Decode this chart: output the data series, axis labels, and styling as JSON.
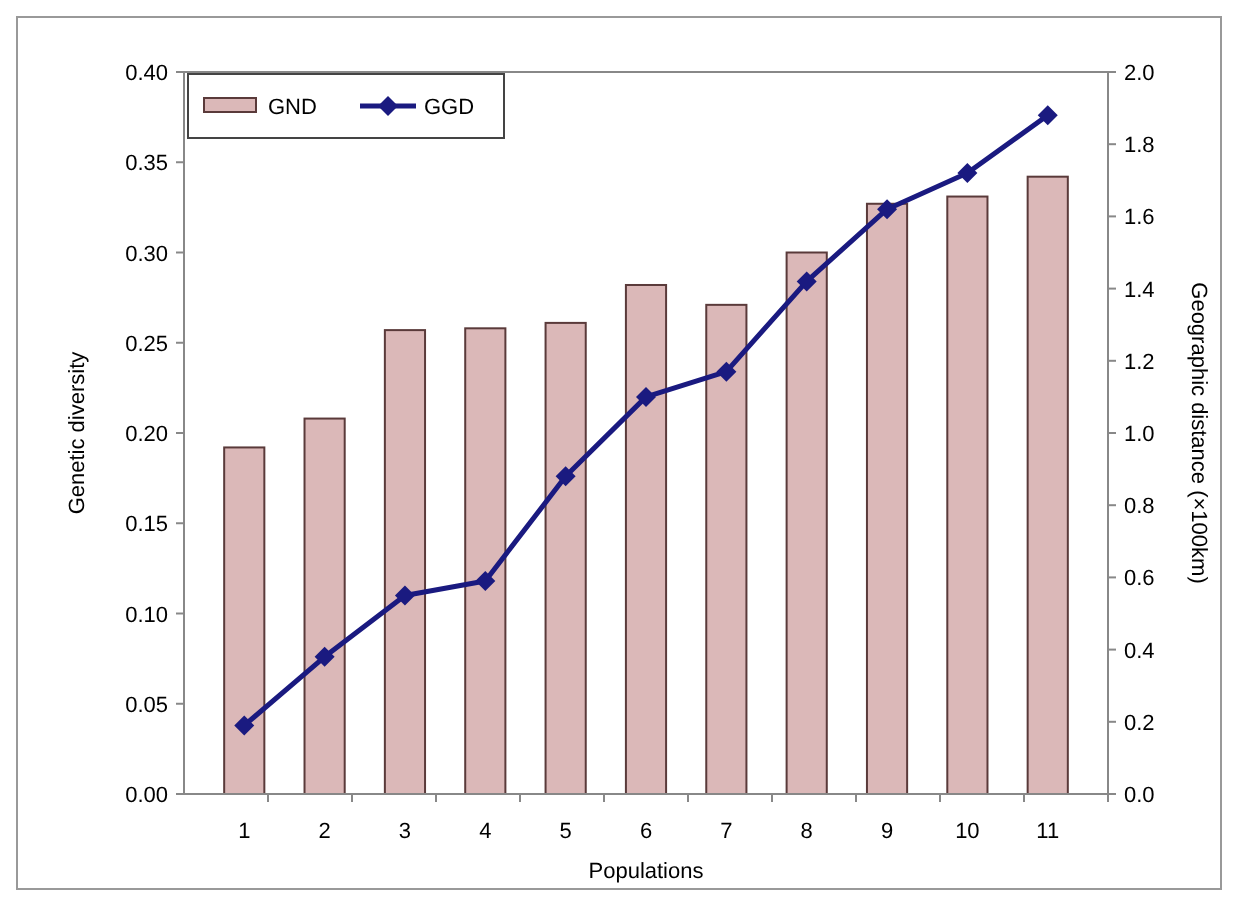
{
  "chart_data": {
    "type": "bar",
    "xlabel": "Populations",
    "ylabel": "Genetic diversity",
    "y2label": "Geographic distance (×100km)",
    "categories": [
      "1",
      "2",
      "3",
      "4",
      "5",
      "6",
      "7",
      "8",
      "9",
      "10",
      "11"
    ],
    "series": [
      {
        "name": "GND",
        "color": "#dbb8b8",
        "values": [
          0.192,
          0.208,
          0.257,
          0.258,
          0.261,
          0.282,
          0.271,
          0.3,
          0.327,
          0.331,
          0.342
        ]
      },
      {
        "name": "GGD",
        "type": "line",
        "axis": "y2",
        "color": "#1a1a80",
        "marker": "diamond",
        "values": [
          0.19,
          0.38,
          0.55,
          0.59,
          0.88,
          1.1,
          1.17,
          1.42,
          1.62,
          1.72,
          1.88
        ]
      }
    ],
    "ylim": [
      0,
      0.4
    ],
    "yticks": [
      {
        "value": 0,
        "label": "0.00"
      },
      {
        "value": 0.05,
        "label": "0.05"
      },
      {
        "value": 0.1,
        "label": "0.10"
      },
      {
        "value": 0.15,
        "label": "0.15"
      },
      {
        "value": 0.2,
        "label": "0.20"
      },
      {
        "value": 0.25,
        "label": "0.25"
      },
      {
        "value": 0.3,
        "label": "0.30"
      },
      {
        "value": 0.35,
        "label": "0.35"
      },
      {
        "value": 0.4,
        "label": "0.40"
      }
    ],
    "y2lim": [
      0,
      2
    ],
    "y2ticks": [
      {
        "value": 0,
        "label": "0.0"
      },
      {
        "value": 0.2,
        "label": "0.2"
      },
      {
        "value": 0.4,
        "label": "0.4"
      },
      {
        "value": 0.6,
        "label": "0.6"
      },
      {
        "value": 0.8,
        "label": "0.8"
      },
      {
        "value": 1,
        "label": "1.0"
      },
      {
        "value": 1.2,
        "label": "1.2"
      },
      {
        "value": 1.4,
        "label": "1.4"
      },
      {
        "value": 1.6,
        "label": "1.6"
      },
      {
        "value": 1.8,
        "label": "1.8"
      },
      {
        "value": 2,
        "label": "2.0"
      }
    ],
    "legend": "top left",
    "grid": false
  }
}
